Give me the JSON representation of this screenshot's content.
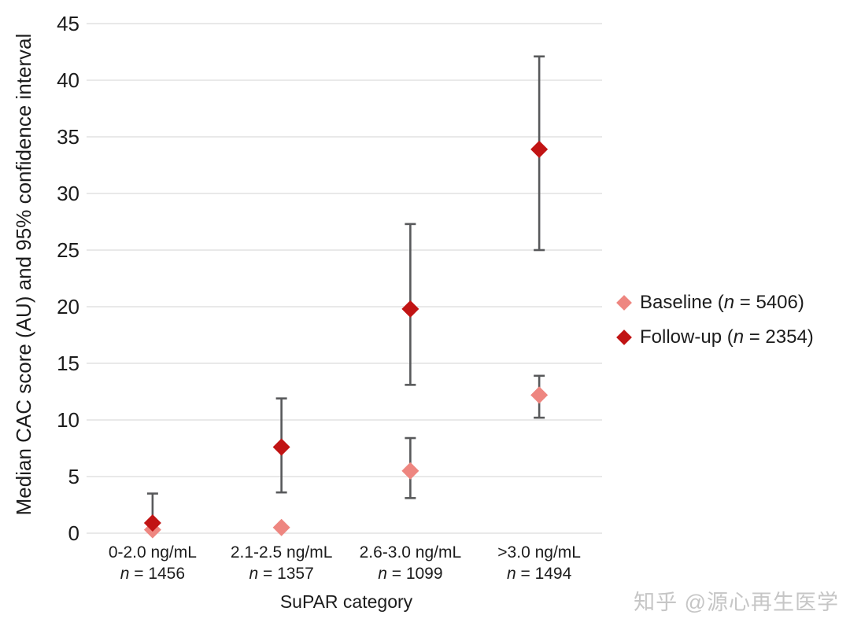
{
  "watermark_text": "知乎 @源心再生医学",
  "colors": {
    "baseline": "#EE8680",
    "followup": "#C11414",
    "error_bar": "#58595B",
    "gridline": "#DCDCDC",
    "text": "#1c1c1c",
    "watermark": "#c6c6c6"
  },
  "chart_data": {
    "type": "scatter",
    "title": "",
    "xlabel": "SuPAR category",
    "ylabel": "Median CAC score (AU) and 95% confidence interval",
    "ylim": [
      0,
      45
    ],
    "y_ticks": [
      0,
      5,
      10,
      15,
      20,
      25,
      30,
      35,
      40,
      45
    ],
    "grid": true,
    "legend_position": "right",
    "categories": [
      {
        "label": "0-2.0 ng/mL",
        "n_italic": "n",
        "n_rest": " = 1456",
        "n": 1456
      },
      {
        "label": "2.1-2.5 ng/mL",
        "n_italic": "n",
        "n_rest": " = 1357",
        "n": 1357
      },
      {
        "label": "2.6-3.0 ng/mL",
        "n_italic": "n",
        "n_rest": " = 1099",
        "n": 1099
      },
      {
        "label": ">3.0 ng/mL",
        "n_italic": "n",
        "n_rest": " = 1494",
        "n": 1494
      }
    ],
    "series": [
      {
        "name": "Baseline",
        "n": 5406,
        "color": "#EE8680",
        "legend": {
          "pre": "Baseline (",
          "n_italic": "n",
          "post": " = 5406)"
        },
        "values": [
          0.3,
          0.5,
          5.5,
          12.2
        ],
        "ci_low": [
          null,
          null,
          3.1,
          10.2
        ],
        "ci_high": [
          null,
          null,
          8.4,
          13.9
        ]
      },
      {
        "name": "Follow-up",
        "n": 2354,
        "color": "#C11414",
        "legend": {
          "pre": "Follow-up (",
          "n_italic": "n",
          "post": " = 2354)"
        },
        "values": [
          0.9,
          7.6,
          19.8,
          33.9
        ],
        "ci_low": [
          null,
          3.6,
          13.1,
          25.0
        ],
        "ci_high": [
          3.5,
          11.9,
          27.3,
          42.1
        ]
      }
    ]
  }
}
